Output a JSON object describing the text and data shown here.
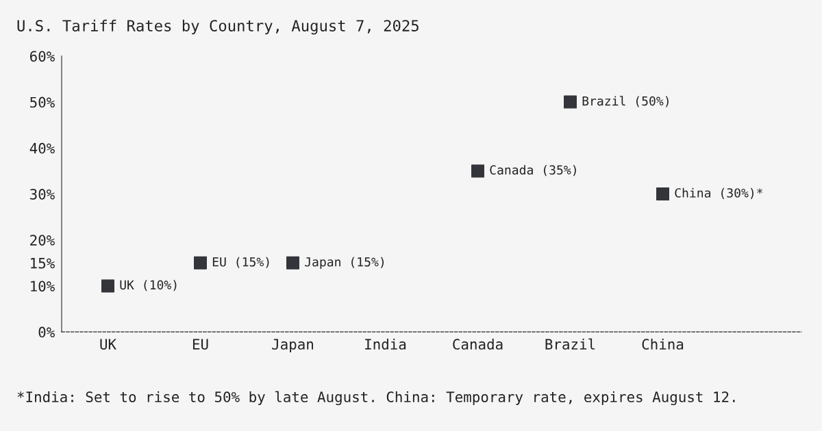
{
  "chart_data": {
    "type": "scatter",
    "title": "U.S. Tariff Rates by Country, August 7, 2025",
    "categories": [
      "UK",
      "EU",
      "Japan",
      "India",
      "Canada",
      "Brazil",
      "China"
    ],
    "values": [
      10,
      15,
      15,
      null,
      35,
      50,
      30
    ],
    "value_labels": [
      "UK (10%)",
      "EU (15%)",
      "Japan (15%)",
      null,
      "Canada (35%)",
      "Brazil (50%)",
      "China (30%)*"
    ],
    "color": "#33353b",
    "marker": "square",
    "ylim": [
      0,
      60
    ],
    "yticks": [
      {
        "value": 0,
        "label": "0%"
      },
      {
        "value": 10,
        "label": "10%"
      },
      {
        "value": 15,
        "label": "15%"
      },
      {
        "value": 20,
        "label": "20%"
      },
      {
        "value": 30,
        "label": "30%"
      },
      {
        "value": 40,
        "label": "40%"
      },
      {
        "value": 50,
        "label": "50%"
      },
      {
        "value": 60,
        "label": "60%"
      }
    ],
    "grid": false,
    "annotations": [
      "*India: Set to rise to 50% by late August. China: Temporary rate, expires August 12."
    ]
  }
}
